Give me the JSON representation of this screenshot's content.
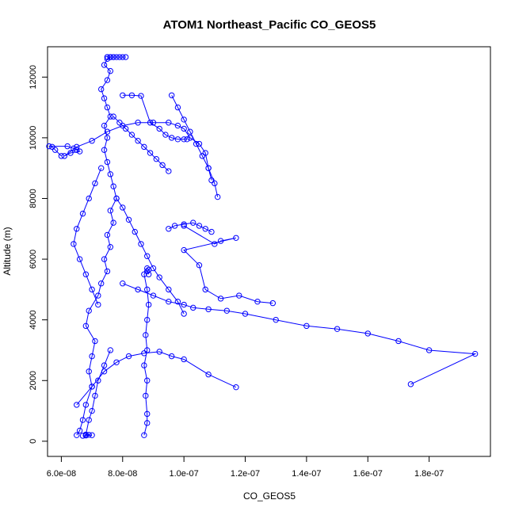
{
  "chart_data": {
    "type": "line",
    "title": "ATOM1 Northeast_Pacific CO_GEOS5",
    "xlabel": "CO_GEOS5",
    "ylabel": "Altitude (m)",
    "xlim": [
      5.55e-08,
      2e-07
    ],
    "ylim": [
      -500,
      13000
    ],
    "x_ticks": [
      {
        "value": 6e-08,
        "label": "6.0e-08"
      },
      {
        "value": 8e-08,
        "label": "8.0e-08"
      },
      {
        "value": 1e-07,
        "label": "1.0e-07"
      },
      {
        "value": 1.2e-07,
        "label": "1.2e-07"
      },
      {
        "value": 1.4e-07,
        "label": "1.4e-07"
      },
      {
        "value": 1.6e-07,
        "label": "1.6e-07"
      },
      {
        "value": 1.8e-07,
        "label": "1.8e-07"
      }
    ],
    "y_ticks": [
      {
        "value": 0,
        "label": "0"
      },
      {
        "value": 2000,
        "label": "2000"
      },
      {
        "value": 4000,
        "label": "4000"
      },
      {
        "value": 6000,
        "label": "6000"
      },
      {
        "value": 8000,
        "label": "8000"
      },
      {
        "value": 10000,
        "label": "10000"
      },
      {
        "value": 12000,
        "label": "12000"
      }
    ],
    "grid": false,
    "legend": "none",
    "color": "#0000ff",
    "marker": "open-circle",
    "series": [
      {
        "x": [
          6.5e-08,
          6.6e-08,
          6.7e-08,
          6.8e-08,
          7e-08,
          6.9e-08,
          7e-08,
          7.1e-08,
          6.8e-08,
          6.9e-08,
          7.2e-08,
          7.3e-08,
          7.5e-08,
          7.4e-08,
          7.6e-08,
          7.5e-08,
          7.7e-08,
          7.6e-08,
          7.8e-08,
          7.7e-08,
          7.6e-08,
          7.5e-08,
          7.4e-08,
          7.5e-08,
          7.4e-08,
          7.6e-08,
          7.5e-08,
          7.4e-08,
          7.3e-08,
          7.5e-08,
          7.6e-08,
          7.4e-08,
          7.5e-08,
          7.6e-08,
          7.7e-08,
          7.5e-08,
          7.6e-08,
          7.5e-08,
          7.6e-08,
          7.7e-08,
          7.8e-08,
          7.9e-08,
          8e-08,
          8.1e-08
        ],
        "y": [
          200,
          350,
          700,
          1200,
          1800,
          2300,
          2800,
          3300,
          3800,
          4300,
          4800,
          5200,
          5600,
          6000,
          6400,
          6800,
          7200,
          7600,
          8000,
          8400,
          8800,
          9200,
          9600,
          10000,
          10400,
          10700,
          11000,
          11300,
          11600,
          11900,
          12200,
          12400,
          12600,
          12660,
          12660,
          12660,
          12660,
          12660,
          12660,
          12660,
          12660,
          12660,
          12660,
          12660
        ]
      },
      {
        "x": [
          6e-08,
          5.8e-08,
          5.7e-08,
          5.6e-08,
          6.2e-08,
          6.4e-08,
          6.5e-08,
          6.6e-08,
          6.3e-08,
          6.1e-08,
          6.5e-08,
          7e-08,
          7.5e-08,
          8e-08,
          8.5e-08,
          9e-08,
          9.5e-08,
          9.8e-08,
          1e-07,
          1.02e-07,
          1.05e-07,
          1.07e-07,
          1.08e-07,
          1.1e-07,
          1.11e-07
        ],
        "y": [
          9400,
          9600,
          9700,
          9720,
          9720,
          9650,
          9600,
          9550,
          9500,
          9400,
          9700,
          9900,
          10200,
          10400,
          10500,
          10500,
          10500,
          10400,
          10300,
          10000,
          9800,
          9500,
          9000,
          8500,
          8050
        ]
      },
      {
        "x": [
          8e-08,
          8.3e-08,
          8.6e-08,
          8.9e-08,
          9.2e-08,
          9.4e-08,
          9.6e-08,
          9.8e-08,
          1e-07,
          1.01e-07
        ],
        "y": [
          11400,
          11400,
          11380,
          10500,
          10300,
          10100,
          10000,
          9950,
          9950,
          9950
        ]
      },
      {
        "x": [
          1e-07,
          1.1e-07,
          1.12e-07,
          1.17e-07,
          1e-07,
          1.05e-07,
          1.07e-07,
          1.12e-07,
          1.18e-07,
          1.24e-07,
          1.29e-07
        ],
        "y": [
          7100,
          6500,
          6600,
          6700,
          6300,
          5800,
          5000,
          4700,
          4800,
          4600,
          4550
        ]
      },
      {
        "x": [
          8e-08,
          8.5e-08,
          9e-08,
          9.5e-08,
          1e-07,
          1.03e-07,
          1.08e-07,
          1.14e-07,
          1.2e-07,
          1.3e-07,
          1.4e-07,
          1.5e-07,
          1.6e-07,
          1.7e-07,
          1.8e-07,
          1.95e-07,
          1.74e-07
        ],
        "y": [
          5200,
          5000,
          4800,
          4600,
          4500,
          4400,
          4350,
          4300,
          4200,
          4000,
          3800,
          3700,
          3550,
          3300,
          3000,
          2880,
          1880
        ]
      },
      {
        "x": [
          6.5e-08,
          7e-08,
          7.4e-08,
          7.8e-08,
          8.2e-08,
          8.7e-08,
          9.2e-08,
          9.6e-08,
          1e-07,
          1.08e-07,
          1.17e-07
        ],
        "y": [
          1200,
          1800,
          2300,
          2600,
          2800,
          2900,
          2950,
          2800,
          2700,
          2200,
          1780
        ]
      },
      {
        "x": [
          8.7e-08,
          8.8e-08,
          8.8e-08,
          8.75e-08,
          8.8e-08,
          8.7e-08,
          8.8e-08,
          8.75e-08,
          8.8e-08,
          8.85e-08,
          8.8e-08,
          8.7e-08,
          8.8e-08,
          8.85e-08,
          8.8e-08,
          8.85e-08
        ],
        "y": [
          200,
          600,
          900,
          1500,
          2000,
          2500,
          3000,
          3500,
          4000,
          4500,
          5000,
          5500,
          5700,
          5650,
          5600,
          5500
        ]
      },
      {
        "x": [
          6.7e-08,
          6.8e-08,
          7e-08,
          6.9e-08,
          6.8e-08,
          6.9e-08,
          7e-08,
          7.1e-08,
          7.2e-08,
          7.4e-08,
          7.6e-08
        ],
        "y": [
          180,
          190,
          200,
          210,
          220,
          700,
          1000,
          1500,
          2000,
          2500,
          3000
        ]
      },
      {
        "x": [
          7.8e-08,
          8e-08,
          8.2e-08,
          8.4e-08,
          8.6e-08,
          8.8e-08,
          9e-08,
          9.2e-08,
          9.5e-08,
          9.8e-08,
          1e-07
        ],
        "y": [
          8000,
          7700,
          7300,
          6900,
          6500,
          6100,
          5700,
          5400,
          5000,
          4600,
          4200
        ]
      },
      {
        "x": [
          9.5e-08,
          9.7e-08,
          1e-07,
          1.03e-07,
          1.05e-07,
          1.07e-07,
          1.09e-07
        ],
        "y": [
          7000,
          7100,
          7150,
          7200,
          7100,
          7000,
          6900
        ]
      },
      {
        "x": [
          7.3e-08,
          7.1e-08,
          6.9e-08,
          6.7e-08,
          6.5e-08,
          6.4e-08,
          6.6e-08,
          6.8e-08,
          7e-08,
          7.2e-08
        ],
        "y": [
          9000,
          8500,
          8000,
          7500,
          7000,
          6500,
          6000,
          5500,
          5000,
          4500
        ]
      },
      {
        "x": [
          7.7e-08,
          7.9e-08,
          8.1e-08,
          8.3e-08,
          8.5e-08,
          8.7e-08,
          8.9e-08,
          9.1e-08,
          9.3e-08,
          9.5e-08
        ],
        "y": [
          10700,
          10500,
          10300,
          10100,
          9900,
          9700,
          9500,
          9300,
          9100,
          8900
        ]
      },
      {
        "x": [
          9.6e-08,
          9.8e-08,
          1e-07,
          1.02e-07,
          1.04e-07,
          1.06e-07,
          1.08e-07,
          1.09e-07
        ],
        "y": [
          11400,
          11000,
          10600,
          10200,
          9800,
          9400,
          9000,
          8600
        ]
      }
    ]
  }
}
